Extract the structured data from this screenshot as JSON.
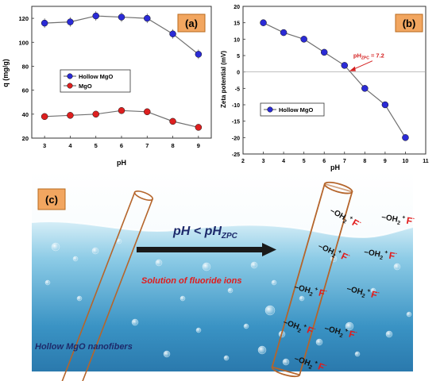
{
  "colors": {
    "hollow_marker": "#2b2bd6",
    "mgo_marker": "#dd1f1f",
    "line": "#707070",
    "panel_label_bg": "#f2a660",
    "panel_label_border": "#b86a1e",
    "fiber": "#b5652b",
    "water_deep": "#2f86b8",
    "water_light": "#bfe3f1",
    "sky": "#ffffff",
    "arrow": "#1a1a1a",
    "ion_red": "#e21b1b",
    "text_navy": "#1d2a6b"
  },
  "chart_data": [
    {
      "type": "line",
      "panel_label": "(a)",
      "xlabel": "pH",
      "ylabel": "q (mg/g)",
      "x": [
        3,
        4,
        5,
        6,
        7,
        8,
        9
      ],
      "xlim": [
        2.5,
        9.5
      ],
      "ylim": [
        20,
        130
      ],
      "xticks": [
        "3",
        "4",
        "5",
        "6",
        "7",
        "8",
        "9"
      ],
      "yticks": [
        "20",
        "40",
        "60",
        "80",
        "100",
        "120"
      ],
      "ytick_values": [
        20,
        40,
        60,
        80,
        100,
        120
      ],
      "legend_position": "middle-left",
      "series": [
        {
          "name": "Hollow MgO",
          "values": [
            116,
            117,
            122,
            121,
            120,
            107,
            90
          ]
        },
        {
          "name": "MgO",
          "values": [
            38,
            39,
            40,
            43,
            42,
            34,
            29
          ]
        }
      ]
    },
    {
      "type": "line",
      "panel_label": "(b)",
      "xlabel": "pH",
      "ylabel": "Zeta potential (mV)",
      "x": [
        3,
        4,
        5,
        6,
        7,
        8,
        9,
        10
      ],
      "xlim": [
        2,
        11
      ],
      "ylim": [
        -25,
        20
      ],
      "xticks": [
        "2",
        "3",
        "4",
        "5",
        "6",
        "7",
        "8",
        "9",
        "10",
        "11"
      ],
      "yticks": [
        "-25",
        "-20",
        "-15",
        "-10",
        "-5",
        "0",
        "5",
        "10",
        "15",
        "20"
      ],
      "ytick_values": [
        -25,
        -20,
        -15,
        -10,
        -5,
        0,
        5,
        10,
        15,
        20
      ],
      "legend_position": "middle-left",
      "annotation": {
        "text_main": "pH",
        "text_sub": "ZPC",
        "text_rest": " = 7.2",
        "x": 7.2,
        "y": 0
      },
      "series": [
        {
          "name": "Hollow MgO",
          "values": [
            15,
            12,
            10,
            6,
            2,
            -5,
            -10,
            -20
          ]
        }
      ]
    }
  ],
  "scene": {
    "panel_label": "(c)",
    "condition_main": "pH < pH",
    "condition_sub": "ZPC",
    "solution_label": "Solution of fluoride ions",
    "fiber_label": "Hollow MgO nanofibers",
    "ion_group_main": "OH",
    "ion_group_sub": "2",
    "ion_group_sup": "+",
    "ion_symbol": "F",
    "ion_charge": "-"
  }
}
